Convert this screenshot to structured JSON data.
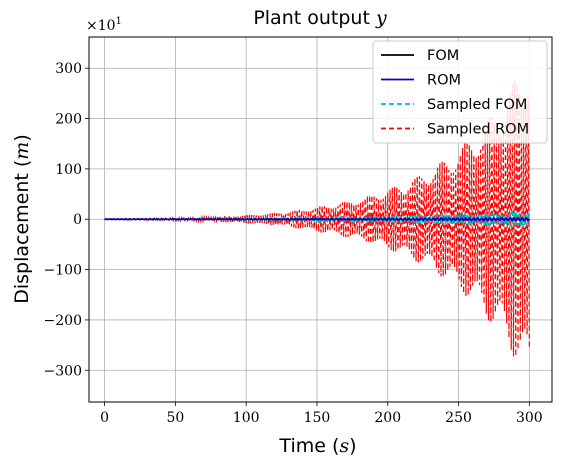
{
  "chart_data": {
    "type": "line",
    "title_text": "Plant output ",
    "title_math": "y",
    "xlabel_text": "Time (",
    "xlabel_math": "s",
    "xlabel_close": ")",
    "ylabel_text": "Displacement (",
    "ylabel_math": "m",
    "ylabel_close": ")",
    "offset_text": "×10",
    "offset_exp": "1",
    "xlim": [
      -11,
      316
    ],
    "ylim": [
      -363,
      362
    ],
    "xticks": [
      0,
      50,
      100,
      150,
      200,
      250,
      300
    ],
    "xtick_labels": [
      "0",
      "50",
      "100",
      "150",
      "200",
      "250",
      "300"
    ],
    "yticks": [
      -300,
      -200,
      -100,
      0,
      100,
      200,
      300
    ],
    "ytick_labels": [
      "−300",
      "−200",
      "−100",
      "0",
      "100",
      "200",
      "300"
    ],
    "grid": true,
    "legend_location": "top-right",
    "series": [
      {
        "name": "FOM",
        "style": "solid",
        "color": "#000000",
        "envelope": {
          "t": [
            0,
            50,
            100,
            150,
            200,
            250,
            300
          ],
          "amplitude": [
            0.3,
            0.5,
            0.8,
            1.0,
            1.5,
            2.0,
            2.5
          ]
        }
      },
      {
        "name": "ROM",
        "style": "solid",
        "color": "#0000cc",
        "envelope": {
          "t": [
            0,
            50,
            100,
            150,
            200,
            250,
            300
          ],
          "amplitude": [
            0.3,
            0.5,
            0.8,
            1.0,
            1.5,
            2.0,
            2.5
          ]
        }
      },
      {
        "name": "Sampled FOM",
        "style": "dashed",
        "color": "#00bfbf",
        "envelope": {
          "t": [
            0,
            50,
            100,
            150,
            200,
            250,
            300
          ],
          "amplitude": [
            0.5,
            1,
            2,
            4,
            7,
            11,
            16
          ]
        }
      },
      {
        "name": "Sampled ROM",
        "style": "dashed",
        "color": "#ff0000",
        "envelope": {
          "t": [
            0,
            50,
            100,
            150,
            200,
            250,
            300
          ],
          "amplitude": [
            1,
            3,
            8,
            25,
            60,
            140,
            330
          ]
        }
      }
    ]
  }
}
